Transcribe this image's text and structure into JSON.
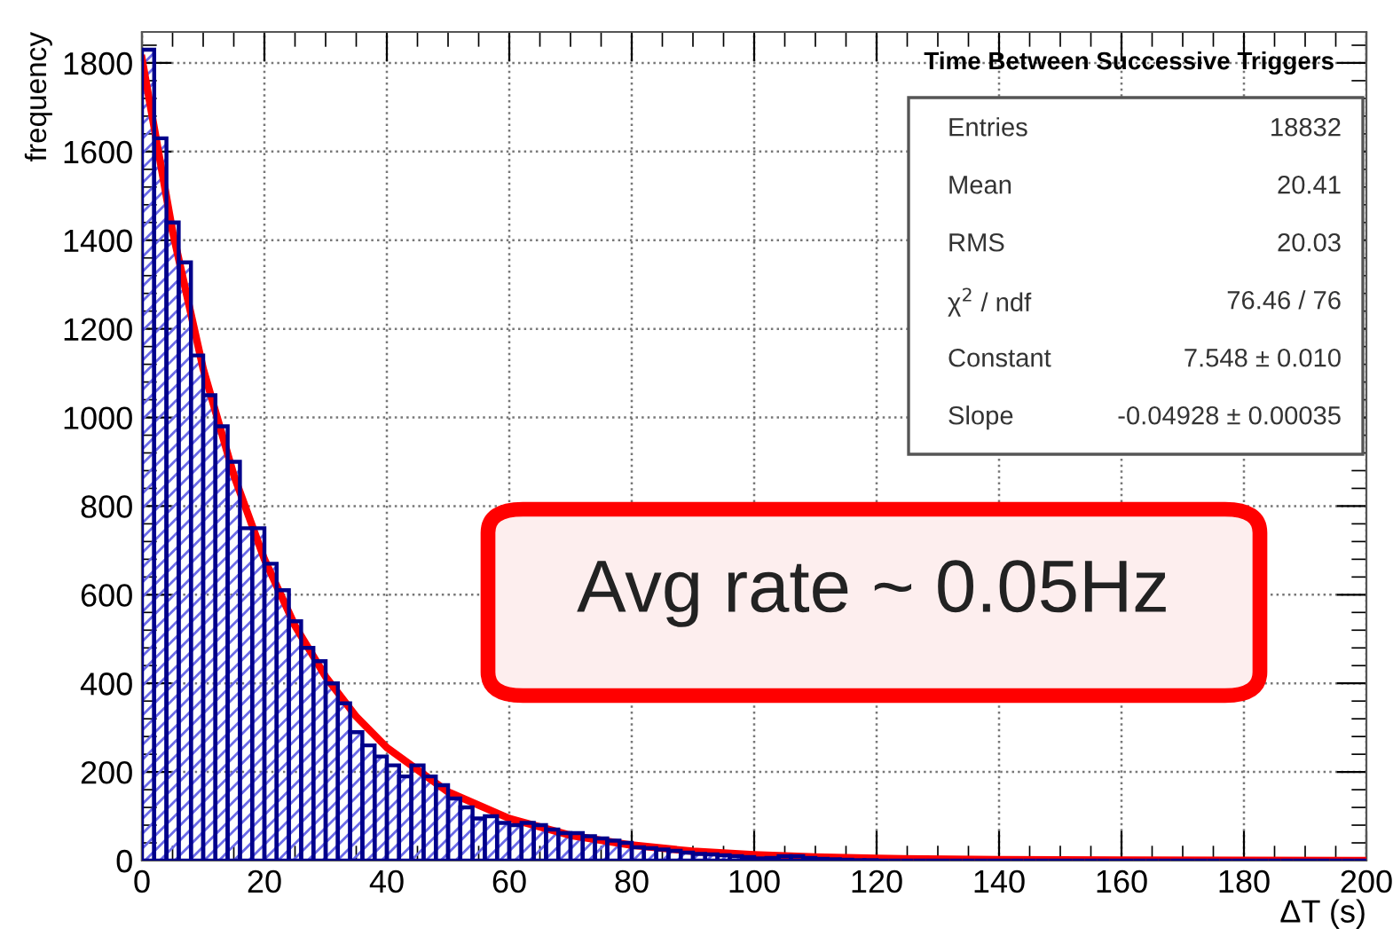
{
  "chart_data": {
    "type": "histogram",
    "title": "Time Between Successive Triggers",
    "xlabel": "ΔT (s)",
    "ylabel": "frequency",
    "bins": [
      0,
      2,
      4,
      6,
      8,
      10,
      12,
      14,
      16,
      18,
      20,
      22,
      24,
      26,
      28,
      30,
      32,
      34,
      36,
      38,
      40,
      42,
      44,
      46,
      48,
      50,
      52,
      54,
      56,
      58,
      60,
      62,
      64,
      66,
      68,
      70,
      72,
      74,
      76,
      78,
      80,
      82,
      84,
      86,
      88,
      90,
      92,
      94,
      96,
      98,
      100,
      102,
      104,
      106,
      108,
      110,
      112,
      114,
      116,
      118,
      120,
      122,
      124,
      126,
      128,
      130,
      132,
      134,
      136,
      138,
      140,
      142,
      144,
      146,
      148,
      150,
      152,
      154,
      156,
      158,
      160,
      162,
      164,
      166,
      168,
      170,
      172,
      174,
      176,
      178,
      180,
      182,
      184,
      186,
      188,
      190,
      192,
      194,
      196,
      198,
      200
    ],
    "series": [
      {
        "color": "#00008b",
        "values": [
          1830,
          1630,
          1440,
          1350,
          1140,
          1050,
          980,
          900,
          750,
          750,
          670,
          610,
          540,
          480,
          450,
          400,
          355,
          290,
          260,
          235,
          215,
          190,
          215,
          190,
          170,
          140,
          120,
          95,
          100,
          85,
          80,
          85,
          80,
          70,
          62,
          62,
          55,
          50,
          45,
          40,
          30,
          28,
          25,
          22,
          18,
          15,
          14,
          12,
          10,
          8,
          5,
          6,
          10,
          10,
          6,
          4,
          3,
          2,
          1,
          1,
          0,
          0,
          0,
          0,
          0,
          0,
          0,
          0,
          0,
          0,
          0,
          0,
          0,
          0,
          0,
          0,
          0,
          0,
          0,
          0,
          0,
          0,
          0,
          0,
          0,
          0,
          0,
          0,
          0,
          0,
          0,
          0,
          0,
          0,
          0,
          0,
          0,
          0,
          0,
          0
        ]
      },
      {
        "type": "line",
        "color": "#ff0000",
        "x": [
          0,
          5,
          10,
          15,
          20,
          25,
          30,
          35,
          40,
          50,
          60,
          70,
          80,
          90,
          100,
          110,
          120,
          140,
          160,
          200
        ],
        "values": [
          1810,
          1420,
          1110,
          870,
          680,
          530,
          415,
          325,
          255,
          155,
          95,
          57,
          35,
          21,
          13,
          8,
          5,
          2,
          1,
          0
        ]
      }
    ],
    "xlim": [
      0,
      200
    ],
    "ylim": [
      0,
      1870
    ],
    "xticks": [
      0,
      20,
      40,
      60,
      80,
      100,
      120,
      140,
      160,
      180,
      200
    ],
    "yticks": [
      0,
      200,
      400,
      600,
      800,
      1000,
      1200,
      1400,
      1600,
      1800
    ],
    "grid": true,
    "legend": false,
    "annotations": [
      "Entries",
      "18832",
      "Mean",
      "20.41",
      "RMS",
      "20.03",
      "χ$^{2}$ / ndf",
      "76.46 / 76",
      "Constant",
      "7.548 ± 0.010",
      "Slope",
      "-0.04928 ± 0.00035",
      "Avg rate ~ 0.05Hz"
    ]
  }
}
